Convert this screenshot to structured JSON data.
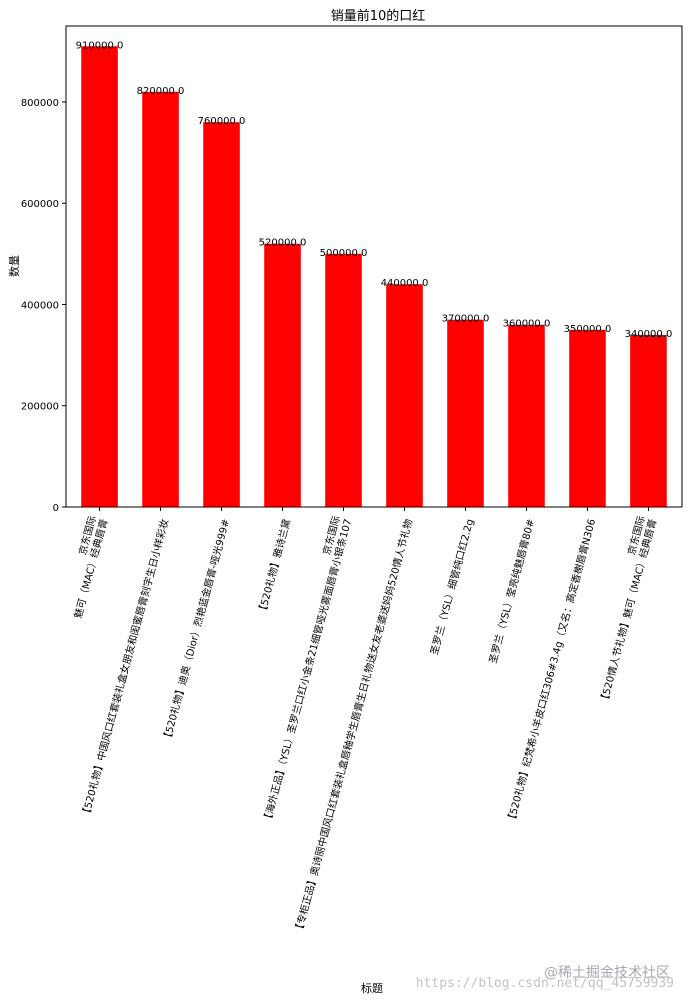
{
  "chart_data": {
    "type": "bar",
    "title": "销量前10的口红",
    "xlabel": "标题",
    "ylabel": "数量",
    "ylim": [
      0,
      950000
    ],
    "yticks": [
      0,
      200000,
      400000,
      600000,
      800000
    ],
    "bar_color": "#ff0000",
    "grid": false,
    "categories": [
      [
        "京东国际",
        "魅可（MAC）经典唇膏"
      ],
      [
        "【520礼物】中国风口红套装礼盒女朋友和闺蜜唇膏刻字生日小样彩妆"
      ],
      [
        "【520礼物】迪奥（Dior）烈艳蓝金唇膏-哑光999#"
      ],
      [
        "【520礼物】雅诗兰黛"
      ],
      [
        "京东国际",
        "【海外正品】（YSL）圣罗兰口红小金条21细管哑光雾面唇膏小银条107"
      ],
      [
        "【专柜正品】奥诗丽中国风口红套装礼盒唇釉学生唇膏生日礼物送女友老婆送妈妈520情人节礼物"
      ],
      [
        "圣罗兰（YSL）细管纯口红2.2g"
      ],
      [
        "圣罗兰（YSL）莹亮纯魅唇膏80#"
      ],
      [
        "【520礼物】纪梵希小羊皮口红306#3.4g（又名：高定香榭唇膏N306"
      ],
      [
        "京东国际",
        "【520情人节礼物】魅可（MAC）经典唇膏"
      ]
    ],
    "values": [
      910000,
      820000,
      760000,
      520000,
      500000,
      440000,
      370000,
      360000,
      350000,
      340000
    ],
    "data_labels": [
      "910000.0",
      "820000.0",
      "760000.0",
      "520000.0",
      "500000.0",
      "440000.0",
      "370000.0",
      "360000.0",
      "350000.0",
      "340000.0"
    ]
  },
  "watermark": {
    "line1": "@稀土掘金技术社区",
    "line2": "https://blog.csdn.net/qq_45759939"
  }
}
